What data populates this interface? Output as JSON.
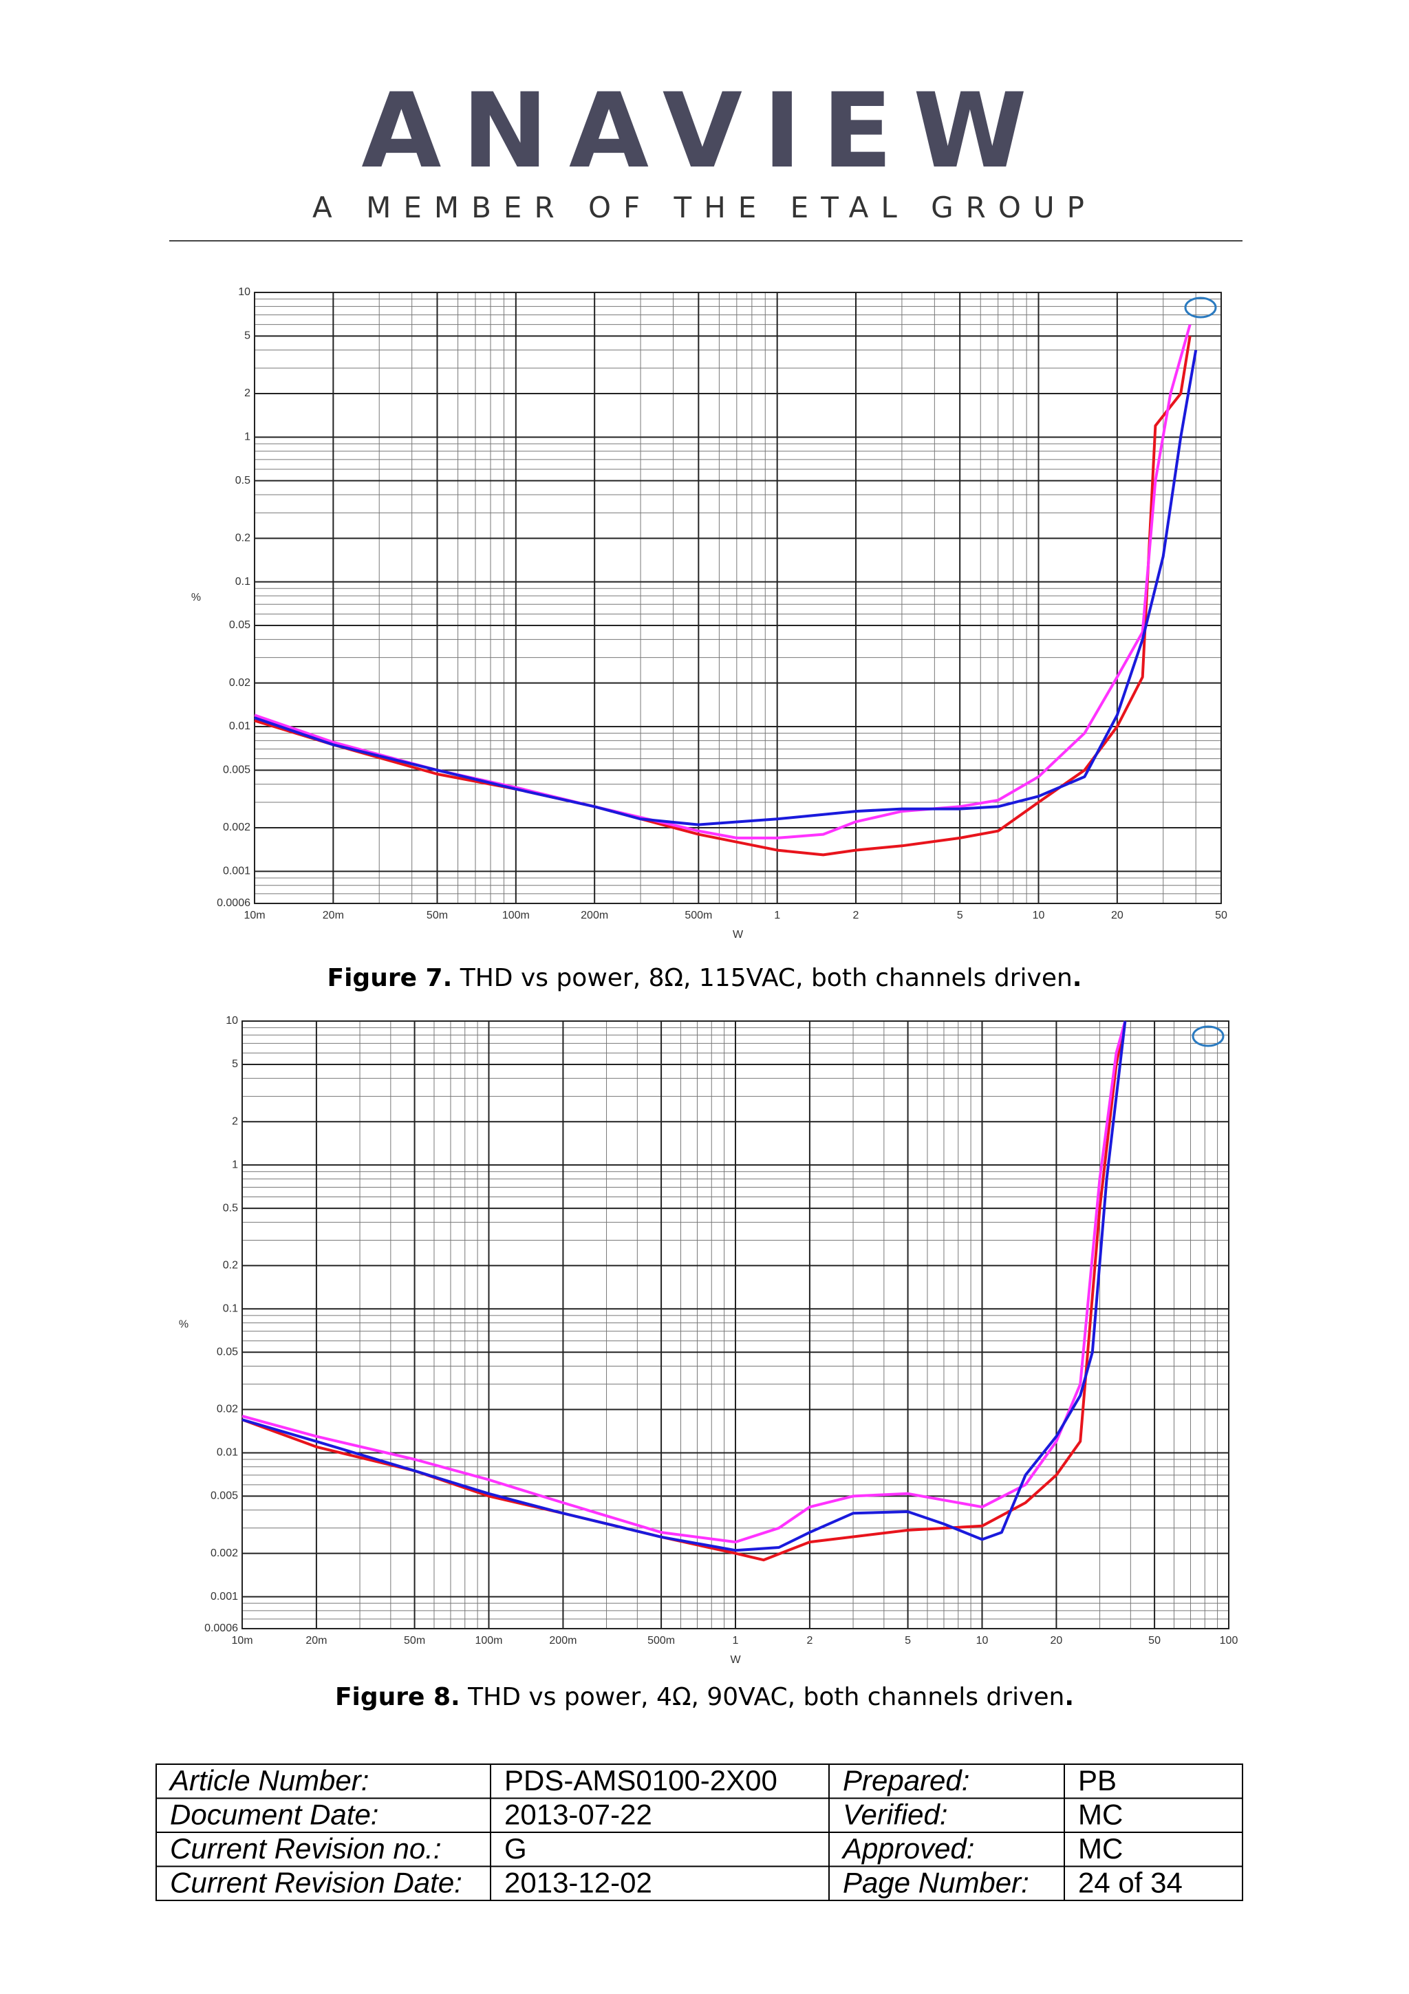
{
  "header": {
    "logo": "ANAVIEW",
    "tagline": "A MEMBER OF THE ETAL GROUP"
  },
  "captions": [
    {
      "label": "Figure 7.",
      "text": "THD vs power, 8Ω, 115VAC, both channels driven",
      "end": "."
    },
    {
      "label": "Figure 8.",
      "text": "THD vs power, 4Ω, 90VAC, both channels driven",
      "end": "."
    }
  ],
  "chart_data": [
    {
      "type": "line",
      "xlabel": "W",
      "ylabel": "%",
      "xscale": "log",
      "yscale": "log",
      "grid": true,
      "xlim": [
        0.01,
        50
      ],
      "ylim": [
        0.0006,
        10
      ],
      "xticks": [
        {
          "value": 0.01,
          "label": "10m"
        },
        {
          "value": 0.02,
          "label": "20m"
        },
        {
          "value": 0.05,
          "label": "50m"
        },
        {
          "value": 0.1,
          "label": "100m"
        },
        {
          "value": 0.2,
          "label": "200m"
        },
        {
          "value": 0.5,
          "label": "500m"
        },
        1,
        2,
        5,
        10,
        20,
        50
      ],
      "yticks": [
        10,
        5,
        2,
        1,
        0.5,
        0.2,
        0.1,
        0.05,
        0.02,
        0.01,
        0.005,
        0.002,
        0.001,
        0.0006
      ],
      "series": [
        {
          "color": "#e8141c",
          "x": [
            0.01,
            0.02,
            0.05,
            0.1,
            0.2,
            0.5,
            1,
            1.5,
            2,
            3,
            5,
            7,
            10,
            15,
            20,
            25,
            28,
            35,
            38
          ],
          "values": [
            0.011,
            0.0075,
            0.0047,
            0.0037,
            0.0028,
            0.0018,
            0.0014,
            0.0013,
            0.0014,
            0.0015,
            0.0017,
            0.0019,
            0.003,
            0.005,
            0.01,
            0.022,
            1.2,
            2.0,
            5.0
          ]
        },
        {
          "color": "#ff33ff",
          "x": [
            0.01,
            0.02,
            0.05,
            0.1,
            0.2,
            0.5,
            0.7,
            1,
            1.5,
            2,
            3,
            5,
            7,
            10,
            15,
            20,
            25,
            28,
            32,
            38
          ],
          "values": [
            0.012,
            0.0078,
            0.005,
            0.0038,
            0.0028,
            0.0019,
            0.0017,
            0.0017,
            0.0018,
            0.0022,
            0.0026,
            0.0028,
            0.0031,
            0.0045,
            0.009,
            0.022,
            0.045,
            0.5,
            2.0,
            6.0
          ]
        },
        {
          "color": "#1a1adc",
          "x": [
            0.01,
            0.02,
            0.05,
            0.1,
            0.2,
            0.3,
            0.5,
            1,
            2,
            3,
            5,
            7,
            10,
            15,
            20,
            25,
            30,
            35,
            40
          ],
          "values": [
            0.0115,
            0.0075,
            0.005,
            0.0037,
            0.0028,
            0.0023,
            0.0021,
            0.0023,
            0.0026,
            0.0027,
            0.0027,
            0.0028,
            0.0033,
            0.0045,
            0.012,
            0.04,
            0.15,
            1.0,
            4.0
          ]
        }
      ]
    },
    {
      "type": "line",
      "xlabel": "W",
      "ylabel": "%",
      "xscale": "log",
      "yscale": "log",
      "grid": true,
      "xlim": [
        0.01,
        100
      ],
      "ylim": [
        0.0006,
        10
      ],
      "xticks": [
        {
          "value": 0.01,
          "label": "10m"
        },
        {
          "value": 0.02,
          "label": "20m"
        },
        {
          "value": 0.05,
          "label": "50m"
        },
        {
          "value": 0.1,
          "label": "100m"
        },
        {
          "value": 0.2,
          "label": "200m"
        },
        {
          "value": 0.5,
          "label": "500m"
        },
        1,
        2,
        5,
        10,
        20,
        50,
        100
      ],
      "yticks": [
        10,
        5,
        2,
        1,
        0.5,
        0.2,
        0.1,
        0.05,
        0.02,
        0.01,
        0.005,
        0.002,
        0.001,
        0.0006
      ],
      "series": [
        {
          "color": "#e8141c",
          "x": [
            0.01,
            0.02,
            0.05,
            0.1,
            0.2,
            0.5,
            1,
            1.3,
            2,
            5,
            10,
            15,
            20,
            25,
            30,
            35,
            38
          ],
          "values": [
            0.017,
            0.011,
            0.0075,
            0.005,
            0.0038,
            0.0026,
            0.002,
            0.0018,
            0.0024,
            0.0029,
            0.0031,
            0.0045,
            0.007,
            0.012,
            0.5,
            5,
            10
          ]
        },
        {
          "color": "#ff33ff",
          "x": [
            0.01,
            0.02,
            0.05,
            0.1,
            0.2,
            0.5,
            1,
            1.5,
            2,
            3,
            5,
            10,
            15,
            20,
            25,
            30,
            35,
            38
          ],
          "values": [
            0.018,
            0.013,
            0.009,
            0.0065,
            0.0045,
            0.0028,
            0.0024,
            0.003,
            0.0042,
            0.005,
            0.0052,
            0.0042,
            0.006,
            0.012,
            0.03,
            0.8,
            6,
            10
          ]
        },
        {
          "color": "#1a1adc",
          "x": [
            0.01,
            0.02,
            0.05,
            0.1,
            0.2,
            0.5,
            1,
            1.5,
            2,
            3,
            5,
            7,
            10,
            12,
            15,
            20,
            25,
            28,
            32,
            38
          ],
          "values": [
            0.017,
            0.012,
            0.0075,
            0.0052,
            0.0038,
            0.0026,
            0.0021,
            0.0022,
            0.0028,
            0.0038,
            0.0039,
            0.0032,
            0.0025,
            0.0028,
            0.007,
            0.013,
            0.025,
            0.05,
            0.8,
            10
          ]
        }
      ]
    }
  ],
  "table": {
    "rows": [
      [
        "Article Number:",
        "PDS-AMS0100-2X00",
        "Prepared:",
        "PB"
      ],
      [
        "Document Date:",
        "2013-07-22",
        "Verified:",
        "MC"
      ],
      [
        "Current Revision no.:",
        "G",
        "Approved:",
        "MC"
      ],
      [
        "Current Revision Date:",
        "2013-12-02",
        "Page Number:",
        "24 of 34"
      ]
    ]
  }
}
